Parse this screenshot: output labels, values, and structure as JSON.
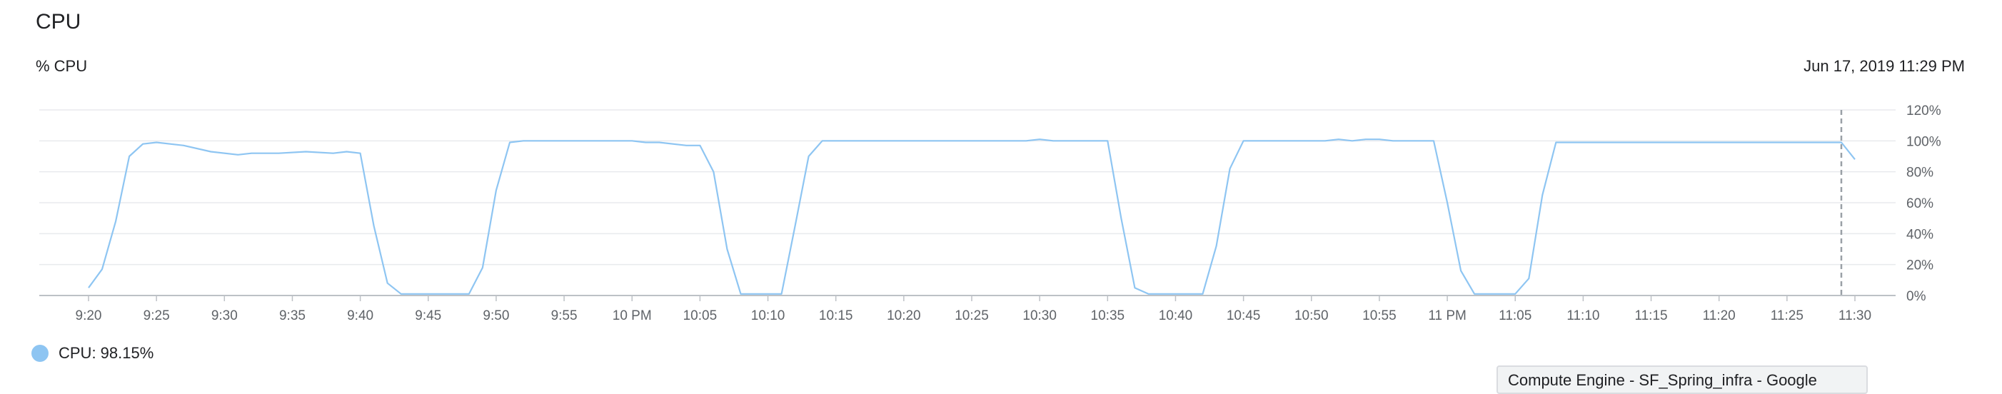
{
  "panel": {
    "title": "CPU",
    "metric_label": "% CPU",
    "timestamp": "Jun 17, 2019 11:29 PM",
    "legend_text": "CPU: 98.15%",
    "tooltip_text": "Compute Engine - SF_Spring_infra - Google"
  },
  "colors": {
    "series": "#8ec5f2",
    "legend_dot": "#8ec5f2",
    "grid": "#e8eaed",
    "cursor": "#9aa0a6"
  },
  "chart_data": {
    "type": "line",
    "title": "CPU",
    "ylabel": "% CPU",
    "ylim": [
      0,
      120
    ],
    "xlim_minutes": [
      1160,
      1395
    ],
    "y_ticks": [
      "0%",
      "20%",
      "40%",
      "60%",
      "80%",
      "100%",
      "120%"
    ],
    "x_ticks": [
      {
        "t": 1160,
        "label": "9:20"
      },
      {
        "t": 1165,
        "label": "9:25"
      },
      {
        "t": 1170,
        "label": "9:30"
      },
      {
        "t": 1175,
        "label": "9:35"
      },
      {
        "t": 1180,
        "label": "9:40"
      },
      {
        "t": 1185,
        "label": "9:45"
      },
      {
        "t": 1190,
        "label": "9:50"
      },
      {
        "t": 1195,
        "label": "9:55"
      },
      {
        "t": 1200,
        "label": "10 PM"
      },
      {
        "t": 1205,
        "label": "10:05"
      },
      {
        "t": 1210,
        "label": "10:10"
      },
      {
        "t": 1215,
        "label": "10:15"
      },
      {
        "t": 1220,
        "label": "10:20"
      },
      {
        "t": 1225,
        "label": "10:25"
      },
      {
        "t": 1230,
        "label": "10:30"
      },
      {
        "t": 1235,
        "label": "10:35"
      },
      {
        "t": 1240,
        "label": "10:40"
      },
      {
        "t": 1245,
        "label": "10:45"
      },
      {
        "t": 1250,
        "label": "10:50"
      },
      {
        "t": 1255,
        "label": "10:55"
      },
      {
        "t": 1260,
        "label": "11 PM"
      },
      {
        "t": 1265,
        "label": "11:05"
      },
      {
        "t": 1270,
        "label": "11:10"
      },
      {
        "t": 1275,
        "label": "11:15"
      },
      {
        "t": 1280,
        "label": "11:20"
      },
      {
        "t": 1285,
        "label": "11:25"
      },
      {
        "t": 1290,
        "label": "11:30"
      }
    ],
    "cursor_t": 1289,
    "series": [
      {
        "values": [
          [
            1160,
            5
          ],
          [
            1161,
            17
          ],
          [
            1162,
            48
          ],
          [
            1163,
            90
          ],
          [
            1164,
            98
          ],
          [
            1165,
            99
          ],
          [
            1167,
            97
          ],
          [
            1169,
            93
          ],
          [
            1171,
            91
          ],
          [
            1172,
            92
          ],
          [
            1174,
            92
          ],
          [
            1176,
            93
          ],
          [
            1178,
            92
          ],
          [
            1179,
            93
          ],
          [
            1180,
            92
          ],
          [
            1181,
            45
          ],
          [
            1182,
            8
          ],
          [
            1183,
            1
          ],
          [
            1184,
            1
          ],
          [
            1188,
            1
          ],
          [
            1189,
            18
          ],
          [
            1190,
            68
          ],
          [
            1191,
            99
          ],
          [
            1192,
            100
          ],
          [
            1200,
            100
          ],
          [
            1201,
            99
          ],
          [
            1202,
            99
          ],
          [
            1204,
            97
          ],
          [
            1205,
            97
          ],
          [
            1206,
            80
          ],
          [
            1207,
            30
          ],
          [
            1208,
            1
          ],
          [
            1211,
            1
          ],
          [
            1212,
            45
          ],
          [
            1213,
            90
          ],
          [
            1214,
            100
          ],
          [
            1229,
            100
          ],
          [
            1230,
            101
          ],
          [
            1231,
            100
          ],
          [
            1235,
            100
          ],
          [
            1236,
            50
          ],
          [
            1237,
            5
          ],
          [
            1238,
            1
          ],
          [
            1242,
            1
          ],
          [
            1243,
            32
          ],
          [
            1244,
            82
          ],
          [
            1245,
            100
          ],
          [
            1251,
            100
          ],
          [
            1252,
            101
          ],
          [
            1253,
            100
          ],
          [
            1254,
            101
          ],
          [
            1255,
            101
          ],
          [
            1256,
            100
          ],
          [
            1259,
            100
          ],
          [
            1260,
            60
          ],
          [
            1261,
            16
          ],
          [
            1262,
            1
          ],
          [
            1265,
            1
          ],
          [
            1266,
            11
          ],
          [
            1267,
            65
          ],
          [
            1268,
            99
          ],
          [
            1289,
            99
          ],
          [
            1290,
            88
          ]
        ]
      }
    ]
  }
}
